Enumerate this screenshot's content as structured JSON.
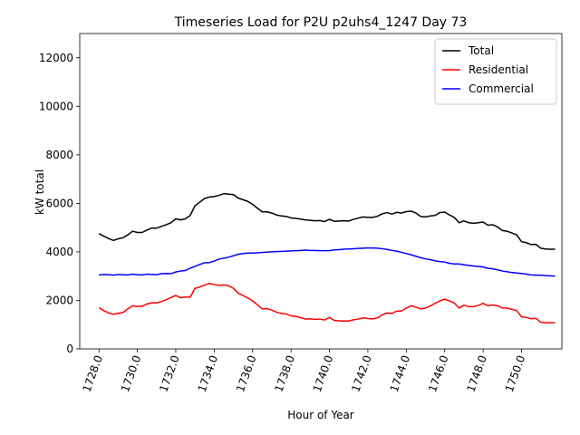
{
  "chart_data": {
    "type": "line",
    "title": "Timeseries Load for P2U p2uhs4_1247  Day 73",
    "xlabel": "Hour of Year",
    "ylabel": "kW total",
    "xlim": [
      1727.0,
      1752.1
    ],
    "ylim": [
      0,
      13000
    ],
    "xticks": [
      1728.0,
      1730.0,
      1732.0,
      1734.0,
      1736.0,
      1738.0,
      1740.0,
      1742.0,
      1744.0,
      1746.0,
      1748.0,
      1750.0
    ],
    "xtick_labels": [
      "1728.0",
      "1730.0",
      "1732.0",
      "1734.0",
      "1736.0",
      "1738.0",
      "1740.0",
      "1742.0",
      "1744.0",
      "1746.0",
      "1748.0",
      "1750.0"
    ],
    "yticks": [
      0,
      2000,
      4000,
      6000,
      8000,
      10000,
      12000
    ],
    "ytick_labels": [
      "0",
      "2000",
      "4000",
      "6000",
      "8000",
      "10000",
      "12000"
    ],
    "legend_position": "top-right",
    "grid": false,
    "series": [
      {
        "name": "Total",
        "color": "#000000",
        "x": [
          1728.0,
          1728.25,
          1728.5,
          1728.75,
          1729.0,
          1729.25,
          1729.5,
          1729.75,
          1730.0,
          1730.25,
          1730.5,
          1730.75,
          1731.0,
          1731.25,
          1731.5,
          1731.75,
          1732.0,
          1732.25,
          1732.5,
          1732.75,
          1733.0,
          1733.25,
          1733.5,
          1733.75,
          1734.0,
          1734.25,
          1734.5,
          1734.75,
          1735.0,
          1735.25,
          1735.5,
          1735.75,
          1736.0,
          1736.25,
          1736.5,
          1736.75,
          1737.0,
          1737.25,
          1737.5,
          1737.75,
          1738.0,
          1738.25,
          1738.5,
          1738.75,
          1739.0,
          1739.25,
          1739.5,
          1739.75,
          1740.0,
          1740.25,
          1740.5,
          1740.75,
          1741.0,
          1741.25,
          1741.5,
          1741.75,
          1742.0,
          1742.25,
          1742.5,
          1742.75,
          1743.0,
          1743.25,
          1743.5,
          1743.75,
          1744.0,
          1744.25,
          1744.5,
          1744.75,
          1745.0,
          1745.25,
          1745.5,
          1745.75,
          1746.0,
          1746.25,
          1746.5,
          1746.75,
          1747.0,
          1747.25,
          1747.5,
          1747.75,
          1748.0,
          1748.25,
          1748.5,
          1748.75,
          1749.0,
          1749.25,
          1749.5,
          1749.75,
          1750.0,
          1750.25,
          1750.5,
          1750.75,
          1751.0,
          1751.25,
          1751.5,
          1751.75
        ],
        "values": [
          4750,
          4650,
          4550,
          4470,
          4540,
          4580,
          4700,
          4850,
          4800,
          4800,
          4900,
          4980,
          4980,
          5050,
          5120,
          5200,
          5360,
          5320,
          5360,
          5500,
          5900,
          6050,
          6200,
          6260,
          6280,
          6330,
          6400,
          6380,
          6360,
          6220,
          6150,
          6080,
          5960,
          5800,
          5650,
          5650,
          5600,
          5520,
          5480,
          5460,
          5400,
          5380,
          5350,
          5320,
          5300,
          5280,
          5290,
          5250,
          5340,
          5260,
          5270,
          5280,
          5270,
          5340,
          5390,
          5440,
          5420,
          5420,
          5470,
          5570,
          5620,
          5560,
          5630,
          5600,
          5660,
          5680,
          5600,
          5460,
          5440,
          5480,
          5500,
          5620,
          5640,
          5520,
          5420,
          5200,
          5280,
          5200,
          5180,
          5200,
          5230,
          5100,
          5120,
          5030,
          4880,
          4850,
          4780,
          4700,
          4420,
          4380,
          4300,
          4310,
          4150,
          4120,
          4110,
          4110
        ]
      },
      {
        "name": "Residential",
        "color": "#ff0000",
        "x": [
          1728.0,
          1728.25,
          1728.5,
          1728.75,
          1729.0,
          1729.25,
          1729.5,
          1729.75,
          1730.0,
          1730.25,
          1730.5,
          1730.75,
          1731.0,
          1731.25,
          1731.5,
          1731.75,
          1732.0,
          1732.25,
          1732.5,
          1732.75,
          1733.0,
          1733.25,
          1733.5,
          1733.75,
          1734.0,
          1734.25,
          1734.5,
          1734.75,
          1735.0,
          1735.25,
          1735.5,
          1735.75,
          1736.0,
          1736.25,
          1736.5,
          1736.75,
          1737.0,
          1737.25,
          1737.5,
          1737.75,
          1738.0,
          1738.25,
          1738.5,
          1738.75,
          1739.0,
          1739.25,
          1739.5,
          1739.75,
          1740.0,
          1740.25,
          1740.5,
          1740.75,
          1741.0,
          1741.25,
          1741.5,
          1741.75,
          1742.0,
          1742.25,
          1742.5,
          1742.75,
          1743.0,
          1743.25,
          1743.5,
          1743.75,
          1744.0,
          1744.25,
          1744.5,
          1744.75,
          1745.0,
          1745.25,
          1745.5,
          1745.75,
          1746.0,
          1746.25,
          1746.5,
          1746.75,
          1747.0,
          1747.25,
          1747.5,
          1747.75,
          1748.0,
          1748.25,
          1748.5,
          1748.75,
          1749.0,
          1749.25,
          1749.5,
          1749.75,
          1750.0,
          1750.25,
          1750.5,
          1750.75,
          1751.0,
          1751.25,
          1751.5,
          1751.75
        ],
        "values": [
          1700,
          1580,
          1480,
          1430,
          1460,
          1500,
          1650,
          1780,
          1740,
          1760,
          1850,
          1900,
          1900,
          1950,
          2030,
          2120,
          2200,
          2110,
          2140,
          2130,
          2500,
          2550,
          2630,
          2700,
          2650,
          2620,
          2640,
          2600,
          2500,
          2300,
          2200,
          2100,
          1980,
          1820,
          1650,
          1660,
          1600,
          1510,
          1460,
          1440,
          1360,
          1340,
          1290,
          1230,
          1240,
          1220,
          1230,
          1190,
          1300,
          1170,
          1160,
          1150,
          1150,
          1200,
          1230,
          1280,
          1250,
          1240,
          1280,
          1400,
          1480,
          1460,
          1560,
          1560,
          1680,
          1780,
          1720,
          1650,
          1680,
          1770,
          1880,
          1980,
          2050,
          1980,
          1890,
          1680,
          1800,
          1740,
          1740,
          1790,
          1880,
          1780,
          1810,
          1780,
          1690,
          1680,
          1630,
          1580,
          1320,
          1300,
          1240,
          1260,
          1100,
          1080,
          1080,
          1080
        ]
      },
      {
        "name": "Commercial",
        "color": "#0000ff",
        "x": [
          1728.0,
          1728.25,
          1728.5,
          1728.75,
          1729.0,
          1729.25,
          1729.5,
          1729.75,
          1730.0,
          1730.25,
          1730.5,
          1730.75,
          1731.0,
          1731.25,
          1731.5,
          1731.75,
          1732.0,
          1732.25,
          1732.5,
          1732.75,
          1733.0,
          1733.25,
          1733.5,
          1733.75,
          1734.0,
          1734.25,
          1734.5,
          1734.75,
          1735.0,
          1735.25,
          1735.5,
          1735.75,
          1736.0,
          1736.25,
          1736.5,
          1736.75,
          1737.0,
          1737.25,
          1737.5,
          1737.75,
          1738.0,
          1738.25,
          1738.5,
          1738.75,
          1739.0,
          1739.25,
          1739.5,
          1739.75,
          1740.0,
          1740.25,
          1740.5,
          1740.75,
          1741.0,
          1741.25,
          1741.5,
          1741.75,
          1742.0,
          1742.25,
          1742.5,
          1742.75,
          1743.0,
          1743.25,
          1743.5,
          1743.75,
          1744.0,
          1744.25,
          1744.5,
          1744.75,
          1745.0,
          1745.25,
          1745.5,
          1745.75,
          1746.0,
          1746.25,
          1746.5,
          1746.75,
          1747.0,
          1747.25,
          1747.5,
          1747.75,
          1748.0,
          1748.25,
          1748.5,
          1748.75,
          1749.0,
          1749.25,
          1749.5,
          1749.75,
          1750.0,
          1750.25,
          1750.5,
          1750.75,
          1751.0,
          1751.25,
          1751.5,
          1751.75
        ],
        "values": [
          3050,
          3070,
          3060,
          3040,
          3070,
          3060,
          3050,
          3080,
          3060,
          3050,
          3080,
          3070,
          3060,
          3100,
          3110,
          3100,
          3170,
          3210,
          3230,
          3330,
          3400,
          3480,
          3550,
          3560,
          3620,
          3700,
          3740,
          3780,
          3840,
          3900,
          3930,
          3950,
          3950,
          3960,
          3980,
          3990,
          4000,
          4010,
          4020,
          4030,
          4040,
          4050,
          4060,
          4070,
          4060,
          4060,
          4050,
          4050,
          4050,
          4080,
          4090,
          4110,
          4120,
          4130,
          4140,
          4150,
          4160,
          4160,
          4150,
          4130,
          4100,
          4060,
          4030,
          3980,
          3930,
          3880,
          3820,
          3760,
          3710,
          3680,
          3630,
          3600,
          3580,
          3530,
          3500,
          3500,
          3470,
          3440,
          3420,
          3400,
          3380,
          3320,
          3300,
          3260,
          3210,
          3180,
          3150,
          3130,
          3110,
          3080,
          3050,
          3040,
          3040,
          3020,
          3010,
          3000
        ]
      }
    ]
  }
}
